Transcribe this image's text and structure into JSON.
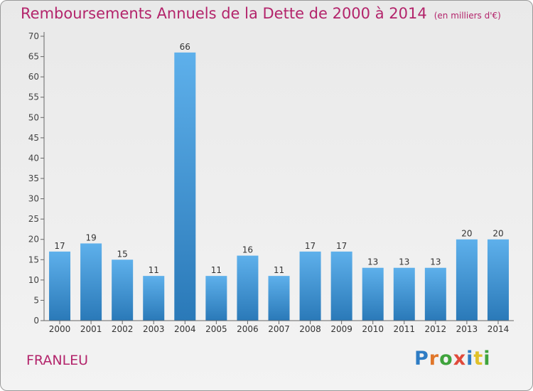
{
  "title": "Remboursements Annuels de la Dette de 2000 à 2014",
  "unit_note": "(en milliers d'€)",
  "commune": "FRANLEU",
  "logo": "Proxiti",
  "colors": {
    "title": "#b3246b",
    "bar_top": "#5eb0eb",
    "bar_bottom": "#2a79b8",
    "logo_letters": [
      "#2e7cc4",
      "#e0762a",
      "#3fa33c",
      "#e04a3b",
      "#2e7cc4",
      "#e0c12a",
      "#3fa33c"
    ]
  },
  "chart_data": {
    "type": "bar",
    "title": "Remboursements Annuels de la Dette de 2000 à 2014",
    "subtitle": "(en milliers d'€)",
    "categories": [
      "2000",
      "2001",
      "2002",
      "2003",
      "2004",
      "2005",
      "2006",
      "2007",
      "2008",
      "2009",
      "2010",
      "2011",
      "2012",
      "2013",
      "2014"
    ],
    "values": [
      17,
      19,
      15,
      11,
      66,
      11,
      16,
      11,
      17,
      17,
      13,
      13,
      13,
      20,
      20
    ],
    "ylim": [
      0,
      70
    ],
    "yticks": [
      0,
      5,
      10,
      15,
      20,
      25,
      30,
      35,
      40,
      45,
      50,
      55,
      60,
      65,
      70
    ],
    "grid": false,
    "data_labels": true
  }
}
